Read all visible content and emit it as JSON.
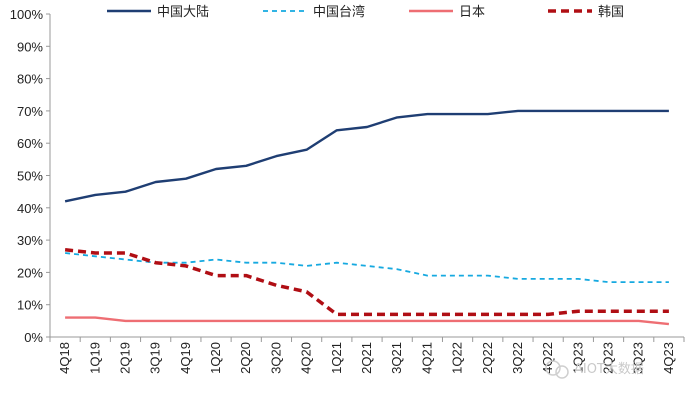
{
  "chart_data": {
    "type": "line",
    "title": "",
    "xlabel": "",
    "ylabel": "",
    "ylim": [
      0,
      100
    ],
    "yticks": [
      "0%",
      "10%",
      "20%",
      "30%",
      "40%",
      "50%",
      "60%",
      "70%",
      "80%",
      "90%",
      "100%"
    ],
    "grid": false,
    "legend_position": "top",
    "categories": [
      "4Q18",
      "1Q19",
      "2Q19",
      "3Q19",
      "4Q19",
      "1Q20",
      "2Q20",
      "3Q20",
      "4Q20",
      "1Q21",
      "2Q21",
      "3Q21",
      "4Q21",
      "1Q22",
      "2Q22",
      "3Q22",
      "4Q22",
      "1Q23",
      "2Q23",
      "3Q23",
      "4Q23"
    ],
    "series": [
      {
        "name": "中国大陆",
        "color": "#1f3e73",
        "dash": "solid",
        "values": [
          42,
          44,
          45,
          48,
          49,
          52,
          53,
          56,
          58,
          64,
          65,
          68,
          69,
          69,
          69,
          70,
          70,
          70,
          70,
          70,
          70
        ]
      },
      {
        "name": "中国台湾",
        "color": "#16a9e0",
        "dash": "dashed",
        "values": [
          26,
          25,
          24,
          23,
          23,
          24,
          23,
          23,
          22,
          23,
          22,
          21,
          19,
          19,
          19,
          18,
          18,
          18,
          17,
          17,
          17
        ]
      },
      {
        "name": "日本",
        "color": "#ee6e73",
        "dash": "solid",
        "values": [
          6,
          6,
          5,
          5,
          5,
          5,
          5,
          5,
          5,
          5,
          5,
          5,
          5,
          5,
          5,
          5,
          5,
          5,
          5,
          5,
          4
        ]
      },
      {
        "name": "韩国",
        "color": "#b00e14",
        "dash": "dashed",
        "values": [
          27,
          26,
          26,
          23,
          22,
          19,
          19,
          16,
          14,
          7,
          7,
          7,
          7,
          7,
          7,
          7,
          7,
          8,
          8,
          8,
          8
        ]
      }
    ]
  },
  "watermark": "AIOT大数据"
}
